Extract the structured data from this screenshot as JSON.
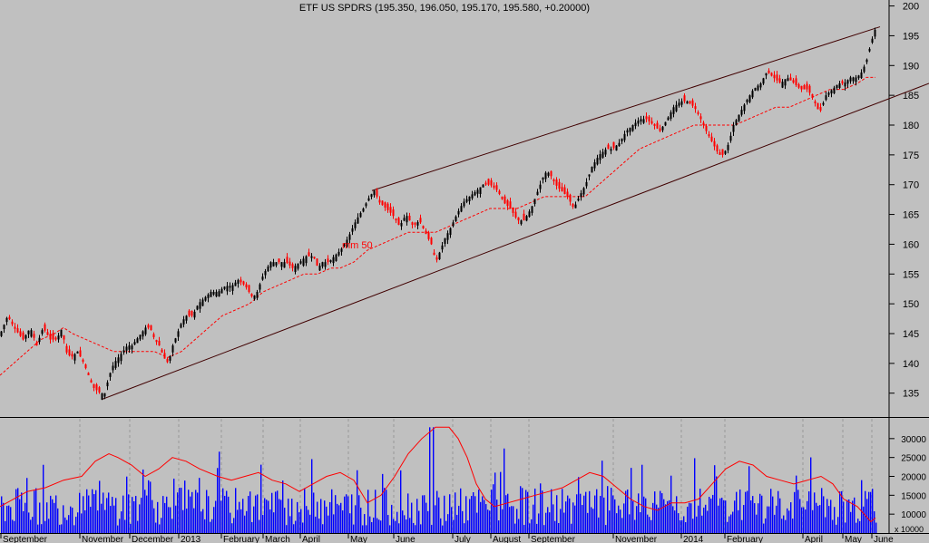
{
  "chart_data": [
    {
      "type": "candlestick",
      "title": "ETF US SPDRS (195.350, 196.050, 195.170, 195.580, +0.20000)",
      "ylim": [
        131,
        201
      ],
      "y_ticks": [
        135,
        140,
        145,
        150,
        155,
        160,
        165,
        170,
        175,
        180,
        185,
        190,
        195,
        200
      ],
      "x_labels": [
        "September",
        "November",
        "December",
        "2013",
        "February",
        "March",
        "April",
        "May",
        "June",
        "July",
        "August",
        "September",
        "November",
        "2014",
        "February",
        "April",
        "May",
        "June"
      ],
      "annotation": "mm 50",
      "colors": {
        "up": "#000000",
        "down": "#ff0000",
        "ma": "#ff0000",
        "channel": "#400000"
      },
      "price_path": [
        [
          0,
          145
        ],
        [
          8,
          148
        ],
        [
          15,
          146
        ],
        [
          25,
          144
        ],
        [
          33,
          146
        ],
        [
          40,
          143
        ],
        [
          47,
          146
        ],
        [
          55,
          144
        ],
        [
          62,
          144
        ],
        [
          68,
          146
        ],
        [
          72,
          142
        ],
        [
          78,
          141
        ],
        [
          85,
          142
        ],
        [
          92,
          140
        ],
        [
          97,
          138
        ],
        [
          102,
          136
        ],
        [
          110,
          135
        ],
        [
          115,
          135
        ],
        [
          120,
          138
        ],
        [
          125,
          140
        ],
        [
          130,
          141
        ],
        [
          135,
          142
        ],
        [
          140,
          143
        ],
        [
          145,
          143
        ],
        [
          150,
          144
        ],
        [
          155,
          145
        ],
        [
          160,
          146
        ],
        [
          165,
          146
        ],
        [
          170,
          144
        ],
        [
          175,
          143
        ],
        [
          180,
          141
        ],
        [
          185,
          140
        ],
        [
          190,
          143
        ],
        [
          195,
          145
        ],
        [
          200,
          147
        ],
        [
          205,
          148
        ],
        [
          212,
          148
        ],
        [
          218,
          150
        ],
        [
          225,
          151
        ],
        [
          232,
          152
        ],
        [
          240,
          152
        ],
        [
          248,
          153
        ],
        [
          255,
          153
        ],
        [
          262,
          154
        ],
        [
          270,
          153
        ],
        [
          278,
          151
        ],
        [
          283,
          152
        ],
        [
          290,
          155
        ],
        [
          298,
          157
        ],
        [
          305,
          157
        ],
        [
          315,
          157
        ],
        [
          322,
          156
        ],
        [
          330,
          157
        ],
        [
          337,
          158
        ],
        [
          345,
          158
        ],
        [
          350,
          156
        ],
        [
          355,
          157
        ],
        [
          362,
          157
        ],
        [
          368,
          158
        ],
        [
          375,
          159
        ],
        [
          383,
          161
        ],
        [
          392,
          164
        ],
        [
          400,
          166
        ],
        [
          407,
          168
        ],
        [
          412,
          169
        ],
        [
          418,
          167
        ],
        [
          425,
          166
        ],
        [
          432,
          165
        ],
        [
          440,
          163
        ],
        [
          447,
          165
        ],
        [
          455,
          163
        ],
        [
          462,
          164
        ],
        [
          468,
          162
        ],
        [
          475,
          160
        ],
        [
          480,
          157
        ],
        [
          485,
          159
        ],
        [
          490,
          161
        ],
        [
          497,
          163
        ],
        [
          503,
          165
        ],
        [
          510,
          167
        ],
        [
          517,
          168
        ],
        [
          525,
          169
        ],
        [
          532,
          170
        ],
        [
          540,
          170
        ],
        [
          548,
          169
        ],
        [
          555,
          167
        ],
        [
          562,
          166
        ],
        [
          570,
          164
        ],
        [
          577,
          164
        ],
        [
          585,
          166
        ],
        [
          590,
          168
        ],
        [
          595,
          170
        ],
        [
          600,
          172
        ],
        [
          605,
          172
        ],
        [
          612,
          170
        ],
        [
          618,
          169
        ],
        [
          625,
          168
        ],
        [
          632,
          166
        ],
        [
          638,
          168
        ],
        [
          645,
          170
        ],
        [
          652,
          173
        ],
        [
          660,
          175
        ],
        [
          668,
          176
        ],
        [
          675,
          176
        ],
        [
          682,
          177
        ],
        [
          690,
          179
        ],
        [
          697,
          180
        ],
        [
          705,
          181
        ],
        [
          712,
          181
        ],
        [
          720,
          180
        ],
        [
          727,
          179
        ],
        [
          735,
          181
        ],
        [
          742,
          183
        ],
        [
          750,
          184
        ],
        [
          757,
          184
        ],
        [
          765,
          183
        ],
        [
          772,
          181
        ],
        [
          778,
          179
        ],
        [
          785,
          177
        ],
        [
          792,
          175
        ],
        [
          797,
          175
        ],
        [
          803,
          177
        ],
        [
          808,
          180
        ],
        [
          815,
          182
        ],
        [
          822,
          184
        ],
        [
          830,
          186
        ],
        [
          838,
          187
        ],
        [
          845,
          189
        ],
        [
          852,
          188
        ],
        [
          860,
          187
        ],
        [
          867,
          188
        ],
        [
          875,
          187
        ],
        [
          882,
          186
        ],
        [
          890,
          186
        ],
        [
          897,
          184
        ],
        [
          903,
          182
        ],
        [
          910,
          185
        ],
        [
          917,
          186
        ],
        [
          924,
          187
        ],
        [
          930,
          187
        ],
        [
          937,
          188
        ],
        [
          944,
          188
        ],
        [
          950,
          189
        ],
        [
          955,
          191
        ],
        [
          960,
          194
        ],
        [
          964,
          196
        ]
      ],
      "ma_path": [
        [
          0,
          138
        ],
        [
          15,
          140
        ],
        [
          30,
          142
        ],
        [
          45,
          144
        ],
        [
          60,
          145
        ],
        [
          70,
          146
        ],
        [
          80,
          145
        ],
        [
          95,
          144
        ],
        [
          110,
          143
        ],
        [
          125,
          142
        ],
        [
          140,
          142
        ],
        [
          155,
          142
        ],
        [
          170,
          142
        ],
        [
          185,
          141
        ],
        [
          200,
          142
        ],
        [
          215,
          144
        ],
        [
          230,
          146
        ],
        [
          245,
          148
        ],
        [
          260,
          149
        ],
        [
          275,
          150
        ],
        [
          290,
          152
        ],
        [
          305,
          153
        ],
        [
          320,
          154
        ],
        [
          335,
          155
        ],
        [
          350,
          155
        ],
        [
          365,
          156
        ],
        [
          375,
          156
        ],
        [
          390,
          157
        ],
        [
          405,
          159
        ],
        [
          420,
          160
        ],
        [
          435,
          161
        ],
        [
          450,
          162
        ],
        [
          465,
          162
        ],
        [
          480,
          162
        ],
        [
          495,
          163
        ],
        [
          510,
          164
        ],
        [
          525,
          165
        ],
        [
          540,
          166
        ],
        [
          555,
          166
        ],
        [
          570,
          166
        ],
        [
          585,
          167
        ],
        [
          600,
          168
        ],
        [
          615,
          168
        ],
        [
          630,
          168
        ],
        [
          645,
          168
        ],
        [
          660,
          170
        ],
        [
          675,
          172
        ],
        [
          690,
          174
        ],
        [
          705,
          176
        ],
        [
          720,
          177
        ],
        [
          735,
          178
        ],
        [
          750,
          179
        ],
        [
          765,
          180
        ],
        [
          780,
          180
        ],
        [
          795,
          180
        ],
        [
          810,
          180
        ],
        [
          825,
          181
        ],
        [
          840,
          182
        ],
        [
          855,
          183
        ],
        [
          870,
          183
        ],
        [
          885,
          184
        ],
        [
          900,
          185
        ],
        [
          915,
          186
        ],
        [
          930,
          186
        ],
        [
          945,
          187
        ],
        [
          955,
          188
        ],
        [
          965,
          188
        ]
      ],
      "channel_upper": [
        [
          410,
          169
        ],
        [
          970,
          196.5
        ]
      ],
      "channel_lower": [
        [
          113,
          134
        ],
        [
          1024,
          187
        ]
      ]
    },
    {
      "type": "bar",
      "series_name": "volume",
      "ylim": [
        5000,
        35000
      ],
      "y_ticks": [
        10000,
        15000,
        20000,
        25000,
        30000
      ],
      "corner_label": "x 10000",
      "colors": {
        "bars": "#0000ff",
        "avg": "#ff0000"
      },
      "avg_path": [
        [
          0,
          12000
        ],
        [
          15,
          14000
        ],
        [
          30,
          16000
        ],
        [
          50,
          17000
        ],
        [
          70,
          19000
        ],
        [
          90,
          20000
        ],
        [
          105,
          24000
        ],
        [
          120,
          26000
        ],
        [
          130,
          25000
        ],
        [
          145,
          23000
        ],
        [
          160,
          20000
        ],
        [
          175,
          22000
        ],
        [
          190,
          25000
        ],
        [
          205,
          24000
        ],
        [
          220,
          22000
        ],
        [
          240,
          20000
        ],
        [
          255,
          19000
        ],
        [
          270,
          20000
        ],
        [
          285,
          21000
        ],
        [
          300,
          19000
        ],
        [
          315,
          18000
        ],
        [
          330,
          16000
        ],
        [
          345,
          18000
        ],
        [
          360,
          20000
        ],
        [
          375,
          21000
        ],
        [
          390,
          19000
        ],
        [
          405,
          13000
        ],
        [
          420,
          15000
        ],
        [
          435,
          20000
        ],
        [
          450,
          26000
        ],
        [
          465,
          30000
        ],
        [
          480,
          33000
        ],
        [
          495,
          33000
        ],
        [
          505,
          30000
        ],
        [
          515,
          25000
        ],
        [
          525,
          18000
        ],
        [
          535,
          14000
        ],
        [
          545,
          12000
        ],
        [
          560,
          13000
        ],
        [
          575,
          14000
        ],
        [
          590,
          15000
        ],
        [
          605,
          16000
        ],
        [
          620,
          17000
        ],
        [
          635,
          19000
        ],
        [
          650,
          21000
        ],
        [
          665,
          20000
        ],
        [
          680,
          17000
        ],
        [
          695,
          14000
        ],
        [
          710,
          12000
        ],
        [
          725,
          11000
        ],
        [
          740,
          13000
        ],
        [
          755,
          13000
        ],
        [
          770,
          14000
        ],
        [
          785,
          18000
        ],
        [
          800,
          22000
        ],
        [
          815,
          24000
        ],
        [
          830,
          23000
        ],
        [
          845,
          20000
        ],
        [
          860,
          19000
        ],
        [
          875,
          18000
        ],
        [
          890,
          19000
        ],
        [
          905,
          20000
        ],
        [
          918,
          18000
        ],
        [
          930,
          14000
        ],
        [
          945,
          12000
        ],
        [
          960,
          8000
        ],
        [
          965,
          9000
        ]
      ]
    }
  ]
}
